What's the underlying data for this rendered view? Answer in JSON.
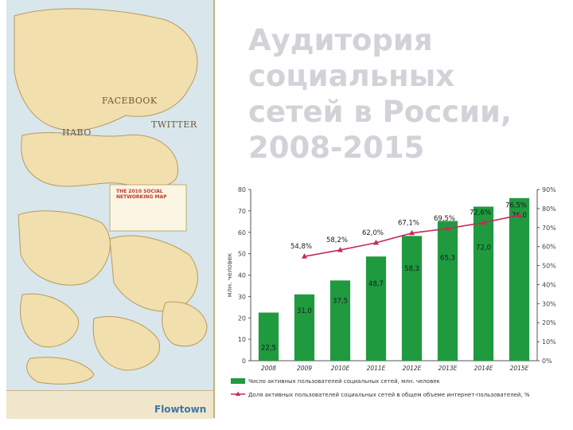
{
  "slide": {
    "title_lines": [
      "Аудитория",
      "социальных",
      "сетей в России,",
      "2008-2015"
    ]
  },
  "map_image": {
    "labels": [
      "FACEBOOK",
      "TWITTER",
      "HABO"
    ],
    "title": "THE 2010 SOCIAL NETWORKING MAP",
    "brand": "Flowtown"
  },
  "colors": {
    "bar": "#1f9a3f",
    "line": "#c72a5a",
    "title": "#d2d2d8",
    "map": "#f2e2b8"
  },
  "chart_data": {
    "type": "bar",
    "categories": [
      "2008",
      "2009",
      "2010E",
      "2011E",
      "2012E",
      "2013E",
      "2014E",
      "2015E"
    ],
    "series": [
      {
        "name": "Число активных пользователей социальных сетей, млн. человек",
        "type": "bar",
        "axis": "left",
        "values": [
          22.5,
          31.0,
          37.5,
          48.7,
          58.3,
          65.3,
          72.0,
          76.0
        ],
        "labels": [
          "22,5",
          "31,0",
          "37,5",
          "48,7",
          "58,3",
          "65,3",
          "72,0",
          "76,0"
        ]
      },
      {
        "name": "Доля активных пользователей социальных сетей в общем объеме интернет-пользователей, %",
        "type": "line",
        "axis": "right",
        "values": [
          null,
          54.8,
          58.2,
          62.0,
          67.1,
          69.5,
          72.6,
          76.5
        ],
        "labels": [
          "",
          "54,8%",
          "58,2%",
          "62,0%",
          "67,1%",
          "69,5%",
          "72,6%",
          "76,5%"
        ]
      }
    ],
    "ylabel": "млн. человек",
    "ylim": [
      0,
      80
    ],
    "yticks": [
      "0",
      "10",
      "20",
      "30",
      "40",
      "50",
      "60",
      "70",
      "80"
    ],
    "y2lim": [
      0,
      90
    ],
    "y2ticks": [
      "0%",
      "10%",
      "20%",
      "30%",
      "40%",
      "50%",
      "60%",
      "70%",
      "80%",
      "90%"
    ],
    "legend_position": "bottom"
  }
}
